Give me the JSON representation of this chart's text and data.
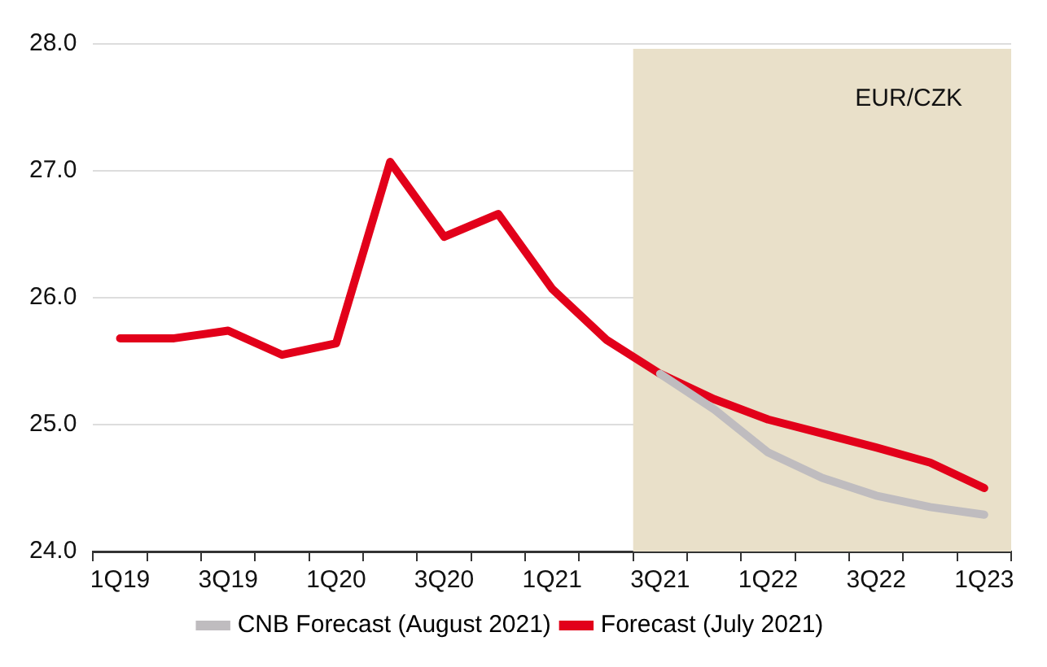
{
  "chart_data": {
    "type": "line",
    "categories": [
      "1Q19",
      null,
      "3Q19",
      null,
      "1Q20",
      null,
      "3Q20",
      null,
      "1Q21",
      null,
      "3Q21",
      null,
      "1Q22",
      null,
      "3Q22",
      null,
      "1Q23"
    ],
    "series": [
      {
        "name": "CNB Forecast (August 2021)",
        "color": "#bfbcbf",
        "values": [
          null,
          null,
          null,
          null,
          null,
          null,
          null,
          null,
          null,
          null,
          25.4,
          25.12,
          24.78,
          24.58,
          24.44,
          24.35,
          24.29
        ]
      },
      {
        "name": "Forecast (July 2021)",
        "color": "#e2001a",
        "values": [
          25.68,
          25.68,
          25.74,
          25.55,
          25.64,
          27.07,
          26.48,
          26.66,
          26.07,
          25.67,
          25.4,
          25.2,
          25.04,
          24.93,
          24.82,
          24.7,
          24.5
        ]
      }
    ],
    "ylim": [
      24,
      28
    ],
    "yticks": [
      {
        "value": 24,
        "label": "24.0"
      },
      {
        "value": 25,
        "label": "25.0"
      },
      {
        "value": 26,
        "label": "26.0"
      },
      {
        "value": 27,
        "label": "27.0"
      },
      {
        "value": 28,
        "label": "28.0"
      }
    ],
    "bands": [
      {
        "axis": "x",
        "from": "3Q21",
        "to": "1Q23",
        "label": "EUR/CZK",
        "color": "#e9e0c9"
      }
    ],
    "grid": "y",
    "legend": "bottom",
    "line_style": "solid",
    "marker": "none"
  }
}
